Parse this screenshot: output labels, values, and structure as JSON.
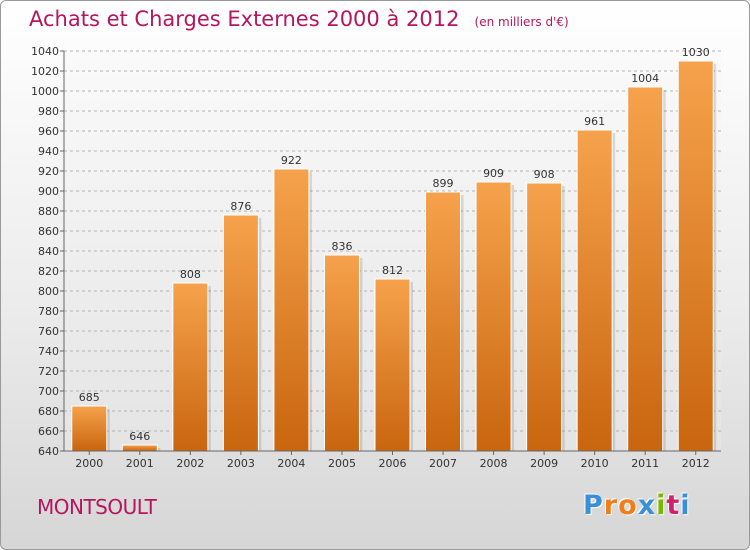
{
  "title": "Achats et Charges Externes 2000 à 2012",
  "unit": "(en milliers d'€)",
  "commune": "MONTSOULT",
  "logo": {
    "text": "Proxiti",
    "colors": [
      "#3a8fd8",
      "#f07e1c",
      "#f07e1c",
      "#3a8fd8",
      "#7ab800",
      "#d0216a",
      "#3a8fd8"
    ]
  },
  "colors": {
    "title": "#b5165e",
    "bar_top": "#f6a24c",
    "bar_bottom": "#c9650f",
    "grid": "#b3b3b3"
  },
  "chart_data": {
    "type": "bar",
    "categories": [
      "2000",
      "2001",
      "2002",
      "2003",
      "2004",
      "2005",
      "2006",
      "2007",
      "2008",
      "2009",
      "2010",
      "2011",
      "2012"
    ],
    "values": [
      685,
      646,
      808,
      876,
      922,
      836,
      812,
      899,
      909,
      908,
      961,
      1004,
      1030
    ],
    "value_labels": [
      "685",
      "646",
      "808",
      "876",
      "922",
      "836",
      "812",
      "899",
      "909",
      "908",
      "961",
      "1004",
      "1030"
    ],
    "yticks": [
      "640",
      "660",
      "680",
      "700",
      "720",
      "740",
      "760",
      "780",
      "800",
      "820",
      "840",
      "860",
      "880",
      "900",
      "920",
      "940",
      "960",
      "980",
      "1000",
      "1020",
      "1040"
    ],
    "ylim": [
      640,
      1040
    ],
    "grid": true,
    "title": "Achats et Charges Externes 2000 à 2012",
    "xlabel": "",
    "ylabel": ""
  }
}
